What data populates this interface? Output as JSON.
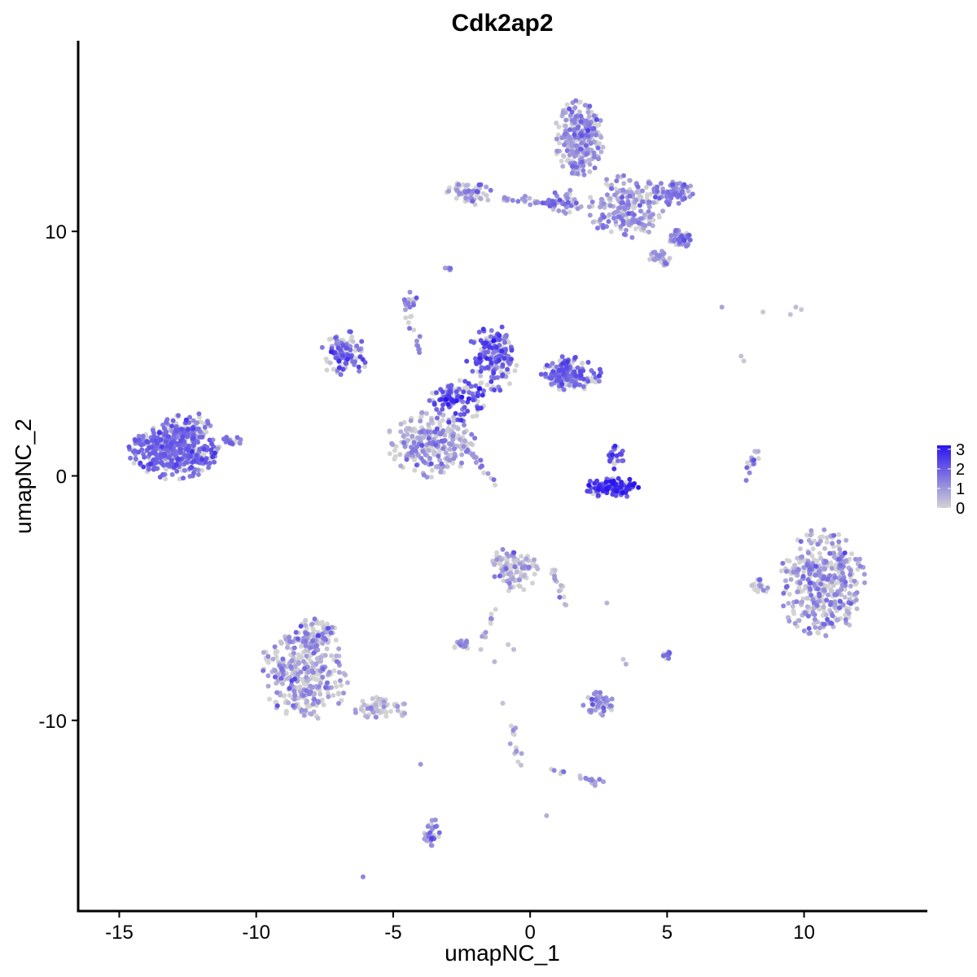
{
  "chart_data": {
    "type": "scatter",
    "title": "Cdk2ap2",
    "xlabel": "umapNC_1",
    "ylabel": "umapNC_2",
    "xlim": [
      -16.5,
      14.5
    ],
    "ylim": [
      -17.8,
      17.8
    ],
    "x_ticks": [
      -15,
      -10,
      -5,
      0,
      5,
      10
    ],
    "x_tick_labels": [
      "-15",
      "-10",
      "-5",
      "0",
      "5",
      "10"
    ],
    "y_ticks": [
      10,
      0,
      -10
    ],
    "y_tick_labels": [
      "10",
      "0",
      "-10"
    ],
    "grid": false,
    "color_scale": {
      "low": "#D3D3D3",
      "high": "#2A14F0",
      "min": 0,
      "max": 3.2,
      "breaks": [
        3,
        2,
        1,
        0
      ],
      "break_labels": [
        "3",
        "2",
        "1",
        "0"
      ]
    },
    "legend_placement": "right",
    "clusters": [
      {
        "cx": -13.0,
        "cy": 1.0,
        "rx": 1.6,
        "ry": 1.1,
        "n": 420,
        "mean": 1.7,
        "sd": 0.35
      },
      {
        "cx": -12.5,
        "cy": 2.1,
        "rx": 0.9,
        "ry": 0.5,
        "n": 60,
        "mean": 1.6,
        "sd": 0.4
      },
      {
        "cx": -10.9,
        "cy": 1.4,
        "rx": 0.4,
        "ry": 0.2,
        "n": 20,
        "mean": 1.5,
        "sd": 0.4
      },
      {
        "cx": 1.8,
        "cy": 13.8,
        "rx": 0.9,
        "ry": 1.5,
        "n": 280,
        "mean": 0.9,
        "sd": 0.6
      },
      {
        "cx": 3.5,
        "cy": 11.0,
        "rx": 1.3,
        "ry": 1.3,
        "n": 200,
        "mean": 1.0,
        "sd": 0.5
      },
      {
        "cx": 5.2,
        "cy": 11.6,
        "rx": 0.8,
        "ry": 0.5,
        "n": 70,
        "mean": 1.3,
        "sd": 0.4
      },
      {
        "cx": 5.5,
        "cy": 9.7,
        "rx": 0.5,
        "ry": 0.35,
        "n": 50,
        "mean": 1.2,
        "sd": 0.5
      },
      {
        "cx": 4.7,
        "cy": 8.9,
        "rx": 0.4,
        "ry": 0.35,
        "n": 35,
        "mean": 0.8,
        "sd": 0.6
      },
      {
        "cx": -2.2,
        "cy": 11.6,
        "rx": 0.8,
        "ry": 0.5,
        "n": 60,
        "mean": 0.9,
        "sd": 0.6
      },
      {
        "cx": 1.3,
        "cy": 11.2,
        "rx": 0.6,
        "ry": 0.5,
        "n": 40,
        "mean": 1.1,
        "sd": 0.5
      },
      {
        "cx": -3.0,
        "cy": 8.5,
        "rx": 0.15,
        "ry": 0.15,
        "n": 6,
        "mean": 1.3,
        "sd": 0.3
      },
      {
        "cx": -3.6,
        "cy": 1.3,
        "rx": 1.6,
        "ry": 1.3,
        "n": 260,
        "mean": 0.8,
        "sd": 0.6
      },
      {
        "cx": -1.4,
        "cy": 4.8,
        "rx": 0.9,
        "ry": 1.4,
        "n": 160,
        "mean": 1.9,
        "sd": 0.5
      },
      {
        "cx": 1.5,
        "cy": 4.2,
        "rx": 1.1,
        "ry": 0.7,
        "n": 140,
        "mean": 1.8,
        "sd": 0.4
      },
      {
        "cx": -6.8,
        "cy": 5.0,
        "rx": 0.9,
        "ry": 0.9,
        "n": 110,
        "mean": 1.5,
        "sd": 0.6
      },
      {
        "cx": -4.4,
        "cy": 7.2,
        "rx": 0.25,
        "ry": 0.3,
        "n": 15,
        "mean": 1.5,
        "sd": 0.4
      },
      {
        "cx": -2.7,
        "cy": 3.1,
        "rx": 1.1,
        "ry": 0.9,
        "n": 120,
        "mean": 2.0,
        "sd": 0.5
      },
      {
        "cx": 3.0,
        "cy": -0.5,
        "rx": 1.0,
        "ry": 0.45,
        "n": 110,
        "mean": 2.4,
        "sd": 0.5
      },
      {
        "cx": 3.1,
        "cy": 0.8,
        "rx": 0.35,
        "ry": 0.5,
        "n": 25,
        "mean": 1.9,
        "sd": 0.5
      },
      {
        "cx": 10.6,
        "cy": -4.4,
        "rx": 1.6,
        "ry": 2.1,
        "n": 420,
        "mean": 0.8,
        "sd": 0.6
      },
      {
        "cx": 8.4,
        "cy": -4.5,
        "rx": 0.3,
        "ry": 0.4,
        "n": 20,
        "mean": 0.6,
        "sd": 0.5
      },
      {
        "cx": -8.3,
        "cy": -8.2,
        "rx": 1.6,
        "ry": 1.8,
        "n": 330,
        "mean": 0.7,
        "sd": 0.6
      },
      {
        "cx": -7.8,
        "cy": -6.5,
        "rx": 0.8,
        "ry": 1.0,
        "n": 80,
        "mean": 0.7,
        "sd": 0.6
      },
      {
        "cx": -5.5,
        "cy": -9.5,
        "rx": 1.0,
        "ry": 0.5,
        "n": 60,
        "mean": 0.5,
        "sd": 0.5
      },
      {
        "cx": -0.6,
        "cy": -3.8,
        "rx": 0.9,
        "ry": 0.9,
        "n": 120,
        "mean": 0.5,
        "sd": 0.6
      },
      {
        "cx": -2.5,
        "cy": -6.9,
        "rx": 0.4,
        "ry": 0.25,
        "n": 20,
        "mean": 0.8,
        "sd": 0.5
      },
      {
        "cx": 2.5,
        "cy": -9.3,
        "rx": 0.6,
        "ry": 0.5,
        "n": 50,
        "mean": 0.9,
        "sd": 0.6
      },
      {
        "cx": 5.0,
        "cy": -7.3,
        "rx": 0.15,
        "ry": 0.25,
        "n": 10,
        "mean": 1.4,
        "sd": 0.3
      },
      {
        "cx": -3.6,
        "cy": -14.6,
        "rx": 0.3,
        "ry": 0.8,
        "n": 30,
        "mean": 1.3,
        "sd": 0.4
      },
      {
        "cx": 2.4,
        "cy": -12.5,
        "rx": 0.3,
        "ry": 0.2,
        "n": 10,
        "mean": 1.0,
        "sd": 0.4
      }
    ],
    "strands": [
      {
        "x0": -1.0,
        "y0": 11.3,
        "x1": 1.0,
        "y1": 11.2,
        "n": 35,
        "mean": 1.2,
        "sd": 0.4
      },
      {
        "x0": 8.3,
        "y0": 1.0,
        "x1": 7.8,
        "y1": -0.2,
        "n": 15,
        "mean": 1.2,
        "sd": 0.5
      },
      {
        "x0": -2.5,
        "y0": 1.5,
        "x1": -1.3,
        "y1": -0.3,
        "n": 22,
        "mean": 1.2,
        "sd": 0.5
      },
      {
        "x0": -4.6,
        "y0": 7.2,
        "x1": -4.0,
        "y1": 5.0,
        "n": 15,
        "mean": 1.4,
        "sd": 0.4
      },
      {
        "x0": -1.2,
        "y0": -5.3,
        "x1": -1.7,
        "y1": -6.5,
        "n": 10,
        "mean": 0.6,
        "sd": 0.5
      },
      {
        "x0": -0.7,
        "y0": -10.2,
        "x1": -0.4,
        "y1": -11.8,
        "n": 14,
        "mean": 0.8,
        "sd": 0.5
      },
      {
        "x0": 0.4,
        "y0": -11.8,
        "x1": 2.2,
        "y1": -12.4,
        "n": 12,
        "mean": 0.6,
        "sd": 0.5
      },
      {
        "x0": 0.8,
        "y0": -3.8,
        "x1": 1.3,
        "y1": -5.4,
        "n": 16,
        "mean": 0.5,
        "sd": 0.5
      }
    ],
    "scatter_points": [
      [
        7.0,
        6.9,
        0.8
      ],
      [
        7.7,
        4.9,
        0.3
      ],
      [
        7.8,
        4.7,
        0.2
      ],
      [
        8.5,
        6.7,
        0.2
      ],
      [
        9.5,
        6.6,
        0.3
      ],
      [
        9.7,
        6.9,
        0.4
      ],
      [
        9.9,
        6.8,
        0.2
      ],
      [
        2.8,
        -5.2,
        0.5
      ],
      [
        -6.1,
        -16.4,
        1.3
      ],
      [
        -4.0,
        -11.8,
        1.0
      ],
      [
        0.6,
        -13.9,
        0.6
      ],
      [
        -1.0,
        -9.3,
        0.3
      ],
      [
        -1.3,
        -7.6,
        0.5
      ],
      [
        -1.8,
        -7.1,
        0.2
      ],
      [
        3.4,
        -7.5,
        0.2
      ],
      [
        3.5,
        -7.7,
        0.6
      ],
      [
        -0.6,
        -7.1,
        0.4
      ],
      [
        -0.8,
        -6.9,
        0.2
      ]
    ]
  }
}
